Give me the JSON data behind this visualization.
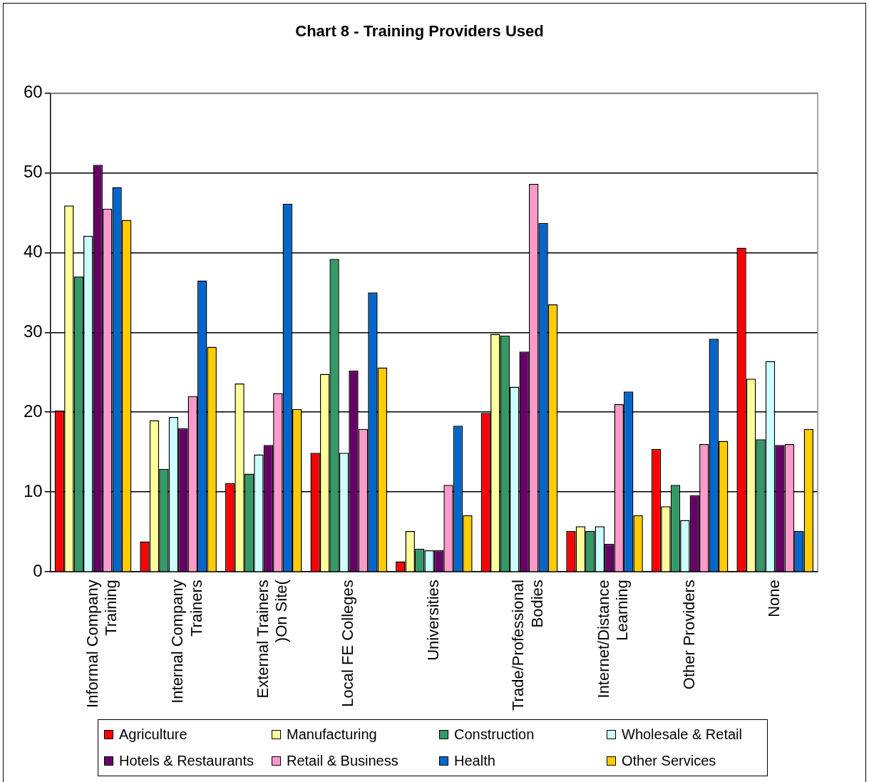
{
  "chart_data": {
    "type": "bar",
    "title": "Chart 8 - Training Providers Used",
    "categories": [
      "Informal Company Training",
      "Internal Company Trainers",
      "External Trainers )On Site(",
      "Local FE Colleges",
      "Universities",
      "Trade/Professional Bodies",
      "Internet/Distance Learning",
      "Other Providers",
      "None"
    ],
    "series": [
      {
        "name": "Agriculture",
        "color": "#ff0000",
        "values": [
          20.2,
          3.8,
          11.1,
          14.9,
          1.3,
          19.9,
          5.1,
          15.4,
          40.6
        ]
      },
      {
        "name": "Manufacturing",
        "color": "#ffff99",
        "values": [
          45.9,
          19,
          23.6,
          24.8,
          5.1,
          29.8,
          5.7,
          8.2,
          24.2
        ]
      },
      {
        "name": "Construction",
        "color": "#339966",
        "values": [
          37,
          12.9,
          12.3,
          39.2,
          2.9,
          29.6,
          5.1,
          10.9,
          16.6
        ]
      },
      {
        "name": "Wholesale & Retail",
        "color": "#ccffff",
        "values": [
          42.1,
          19.4,
          14.7,
          14.9,
          2.7,
          23.2,
          5.7,
          6.5,
          26.4
        ]
      },
      {
        "name": "Hotels & Restaurants",
        "color": "#660066",
        "values": [
          51,
          18,
          15.9,
          25.2,
          2.7,
          27.6,
          3.5,
          9.6,
          15.9
        ]
      },
      {
        "name": "Retail & Business",
        "color": "#ff99cc",
        "values": [
          45.5,
          22,
          22.4,
          17.9,
          10.9,
          48.6,
          21,
          16,
          16
        ]
      },
      {
        "name": "Health",
        "color": "#0066cc",
        "values": [
          48.2,
          36.5,
          46.1,
          35,
          18.3,
          43.7,
          22.6,
          29.2,
          5.1
        ]
      },
      {
        "name": "Other Services",
        "color": "#ffcc00",
        "values": [
          44.1,
          28.2,
          20.4,
          25.6,
          7.1,
          33.5,
          7.1,
          16.4,
          17.9
        ]
      }
    ],
    "ylim": [
      0,
      60
    ],
    "yticks": [
      0,
      10,
      20,
      30,
      40,
      50,
      60
    ],
    "grid": "y",
    "legend": "bottom"
  }
}
